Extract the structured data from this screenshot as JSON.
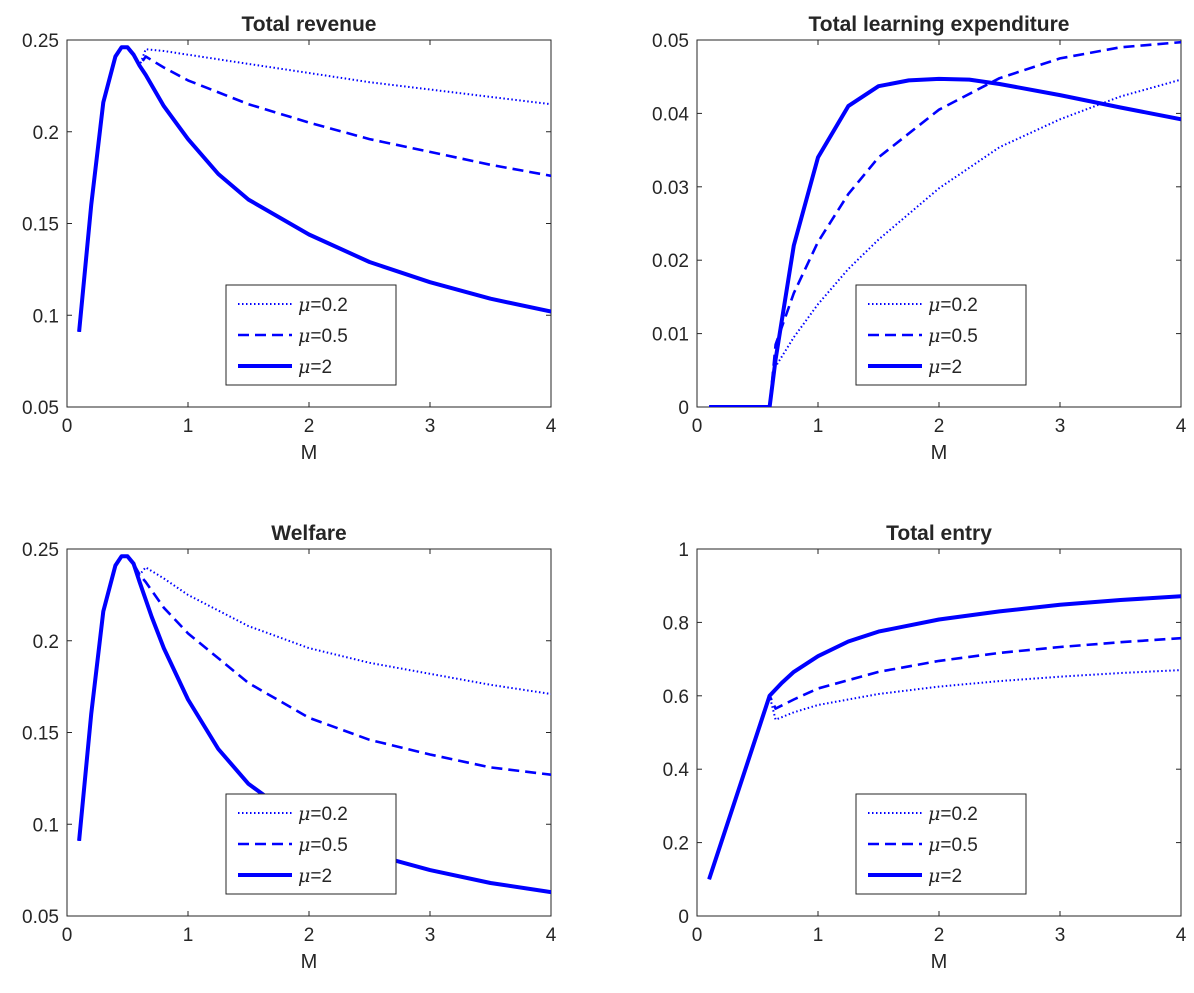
{
  "figure": {
    "line_color": "#0000FF",
    "axis_color": "#262626"
  },
  "chart_data": [
    {
      "type": "line",
      "title": "Total revenue",
      "xlabel": "M",
      "ylabel": "",
      "xlim": [
        0,
        4
      ],
      "ylim": [
        0.05,
        0.25
      ],
      "xticks": [
        0,
        1,
        2,
        3,
        4
      ],
      "xtick_labels": [
        "0",
        "1",
        "2",
        "3",
        "4"
      ],
      "yticks": [
        0.05,
        0.1,
        0.15,
        0.2,
        0.25
      ],
      "ytick_labels": [
        "0.05",
        "0.1",
        "0.15",
        "0.2",
        "0.25"
      ],
      "grid": false,
      "legend_position": "lower-center",
      "series": [
        {
          "name": "=0.2",
          "symbol": "μ",
          "style": "dotted",
          "x": [
            0.1,
            0.2,
            0.3,
            0.4,
            0.45,
            0.5,
            0.55,
            0.6,
            0.65,
            0.8,
            1.0,
            1.5,
            2.0,
            2.5,
            3.0,
            3.5,
            4.0
          ],
          "y": [
            0.091,
            0.16,
            0.216,
            0.241,
            0.246,
            0.246,
            0.242,
            0.236,
            0.245,
            0.244,
            0.242,
            0.237,
            0.232,
            0.227,
            0.223,
            0.219,
            0.215
          ]
        },
        {
          "name": "=0.5",
          "symbol": "μ",
          "style": "dashed",
          "x": [
            0.1,
            0.2,
            0.3,
            0.4,
            0.45,
            0.5,
            0.55,
            0.6,
            0.65,
            0.8,
            1.0,
            1.5,
            2.0,
            2.5,
            3.0,
            3.5,
            4.0
          ],
          "y": [
            0.091,
            0.16,
            0.216,
            0.241,
            0.246,
            0.246,
            0.242,
            0.236,
            0.241,
            0.235,
            0.228,
            0.215,
            0.205,
            0.196,
            0.189,
            0.182,
            0.176
          ]
        },
        {
          "name": "=2",
          "symbol": "μ",
          "style": "solid",
          "x": [
            0.1,
            0.2,
            0.3,
            0.4,
            0.45,
            0.5,
            0.55,
            0.6,
            0.65,
            0.8,
            1.0,
            1.25,
            1.5,
            2.0,
            2.5,
            3.0,
            3.5,
            4.0
          ],
          "y": [
            0.091,
            0.16,
            0.216,
            0.241,
            0.246,
            0.246,
            0.242,
            0.236,
            0.231,
            0.214,
            0.196,
            0.177,
            0.163,
            0.144,
            0.129,
            0.118,
            0.109,
            0.102
          ]
        }
      ]
    },
    {
      "type": "line",
      "title": "Total learning expenditure",
      "xlabel": "M",
      "ylabel": "",
      "xlim": [
        0,
        4
      ],
      "ylim": [
        0,
        0.05
      ],
      "xticks": [
        0,
        1,
        2,
        3,
        4
      ],
      "xtick_labels": [
        "0",
        "1",
        "2",
        "3",
        "4"
      ],
      "yticks": [
        0,
        0.01,
        0.02,
        0.03,
        0.04,
        0.05
      ],
      "ytick_labels": [
        "0",
        "0.01",
        "0.02",
        "0.03",
        "0.04",
        "0.05"
      ],
      "grid": false,
      "legend_position": "lower-center",
      "series": [
        {
          "name": "=0.2",
          "symbol": "μ",
          "style": "dotted",
          "x": [
            0.1,
            0.6,
            0.65,
            0.8,
            1.0,
            1.25,
            1.5,
            2.0,
            2.5,
            3.0,
            3.5,
            4.0
          ],
          "y": [
            0,
            0,
            0.0055,
            0.0095,
            0.014,
            0.0188,
            0.0228,
            0.0298,
            0.0354,
            0.0392,
            0.0423,
            0.0446
          ]
        },
        {
          "name": "=0.5",
          "symbol": "μ",
          "style": "dashed",
          "x": [
            0.1,
            0.6,
            0.65,
            0.8,
            1.0,
            1.25,
            1.5,
            2.0,
            2.5,
            3.0,
            3.5,
            4.0
          ],
          "y": [
            0,
            0,
            0.0085,
            0.0155,
            0.0225,
            0.029,
            0.034,
            0.0405,
            0.0448,
            0.0475,
            0.049,
            0.0497
          ]
        },
        {
          "name": "=2",
          "symbol": "μ",
          "style": "solid",
          "x": [
            0.1,
            0.6,
            0.65,
            0.8,
            1.0,
            1.25,
            1.5,
            1.75,
            2.0,
            2.25,
            2.5,
            3.0,
            3.5,
            4.0
          ],
          "y": [
            0,
            0,
            0.0065,
            0.022,
            0.034,
            0.041,
            0.0437,
            0.0445,
            0.0447,
            0.0446,
            0.044,
            0.0425,
            0.0408,
            0.0392
          ]
        }
      ]
    },
    {
      "type": "line",
      "title": "Welfare",
      "xlabel": "M",
      "ylabel": "",
      "xlim": [
        0,
        4
      ],
      "ylim": [
        0.05,
        0.25
      ],
      "xticks": [
        0,
        1,
        2,
        3,
        4
      ],
      "xtick_labels": [
        "0",
        "1",
        "2",
        "3",
        "4"
      ],
      "yticks": [
        0.05,
        0.1,
        0.15,
        0.2,
        0.25
      ],
      "ytick_labels": [
        "0.05",
        "0.1",
        "0.15",
        "0.2",
        "0.25"
      ],
      "grid": false,
      "legend_position": "lower-center",
      "series": [
        {
          "name": "=0.2",
          "symbol": "μ",
          "style": "dotted",
          "x": [
            0.1,
            0.2,
            0.3,
            0.4,
            0.45,
            0.5,
            0.55,
            0.6,
            0.65,
            0.8,
            1.0,
            1.5,
            2.0,
            2.5,
            3.0,
            3.5,
            4.0
          ],
          "y": [
            0.091,
            0.16,
            0.216,
            0.241,
            0.246,
            0.246,
            0.242,
            0.236,
            0.24,
            0.234,
            0.225,
            0.208,
            0.196,
            0.188,
            0.182,
            0.176,
            0.171
          ]
        },
        {
          "name": "=0.5",
          "symbol": "μ",
          "style": "dashed",
          "x": [
            0.1,
            0.2,
            0.3,
            0.4,
            0.45,
            0.5,
            0.55,
            0.6,
            0.65,
            0.8,
            1.0,
            1.5,
            2.0,
            2.5,
            3.0,
            3.5,
            4.0
          ],
          "y": [
            0.091,
            0.16,
            0.216,
            0.241,
            0.246,
            0.246,
            0.242,
            0.236,
            0.232,
            0.218,
            0.204,
            0.177,
            0.158,
            0.146,
            0.138,
            0.131,
            0.127
          ]
        },
        {
          "name": "=2",
          "symbol": "μ",
          "style": "solid",
          "x": [
            0.1,
            0.2,
            0.3,
            0.4,
            0.45,
            0.5,
            0.55,
            0.6,
            0.7,
            0.8,
            1.0,
            1.25,
            1.5,
            2.0,
            2.5,
            3.0,
            3.5,
            4.0
          ],
          "y": [
            0.091,
            0.16,
            0.216,
            0.241,
            0.246,
            0.246,
            0.242,
            0.232,
            0.213,
            0.196,
            0.168,
            0.141,
            0.122,
            0.098,
            0.084,
            0.075,
            0.068,
            0.063
          ]
        }
      ]
    },
    {
      "type": "line",
      "title": "Total entry",
      "xlabel": "M",
      "ylabel": "",
      "xlim": [
        0,
        4
      ],
      "ylim": [
        0,
        1
      ],
      "xticks": [
        0,
        1,
        2,
        3,
        4
      ],
      "xtick_labels": [
        "0",
        "1",
        "2",
        "3",
        "4"
      ],
      "yticks": [
        0,
        0.2,
        0.4,
        0.6,
        0.8,
        1
      ],
      "ytick_labels": [
        "0",
        "0.2",
        "0.4",
        "0.6",
        "0.8",
        "1"
      ],
      "grid": false,
      "legend_position": "lower-center",
      "series": [
        {
          "name": "=0.2",
          "symbol": "μ",
          "style": "dotted",
          "x": [
            0.1,
            0.6,
            0.65,
            0.8,
            1.0,
            1.5,
            2.0,
            2.5,
            3.0,
            3.5,
            4.0
          ],
          "y": [
            0.1,
            0.6,
            0.535,
            0.555,
            0.575,
            0.605,
            0.625,
            0.64,
            0.652,
            0.662,
            0.67
          ]
        },
        {
          "name": "=0.5",
          "symbol": "μ",
          "style": "dashed",
          "x": [
            0.1,
            0.6,
            0.65,
            0.8,
            1.0,
            1.5,
            2.0,
            2.5,
            3.0,
            3.5,
            4.0
          ],
          "y": [
            0.1,
            0.6,
            0.565,
            0.59,
            0.62,
            0.665,
            0.695,
            0.717,
            0.733,
            0.746,
            0.757
          ]
        },
        {
          "name": "=2",
          "symbol": "μ",
          "style": "solid",
          "x": [
            0.1,
            0.6,
            0.7,
            0.8,
            1.0,
            1.25,
            1.5,
            2.0,
            2.5,
            3.0,
            3.5,
            4.0
          ],
          "y": [
            0.1,
            0.6,
            0.635,
            0.665,
            0.708,
            0.748,
            0.775,
            0.808,
            0.83,
            0.848,
            0.861,
            0.871
          ]
        }
      ]
    }
  ]
}
